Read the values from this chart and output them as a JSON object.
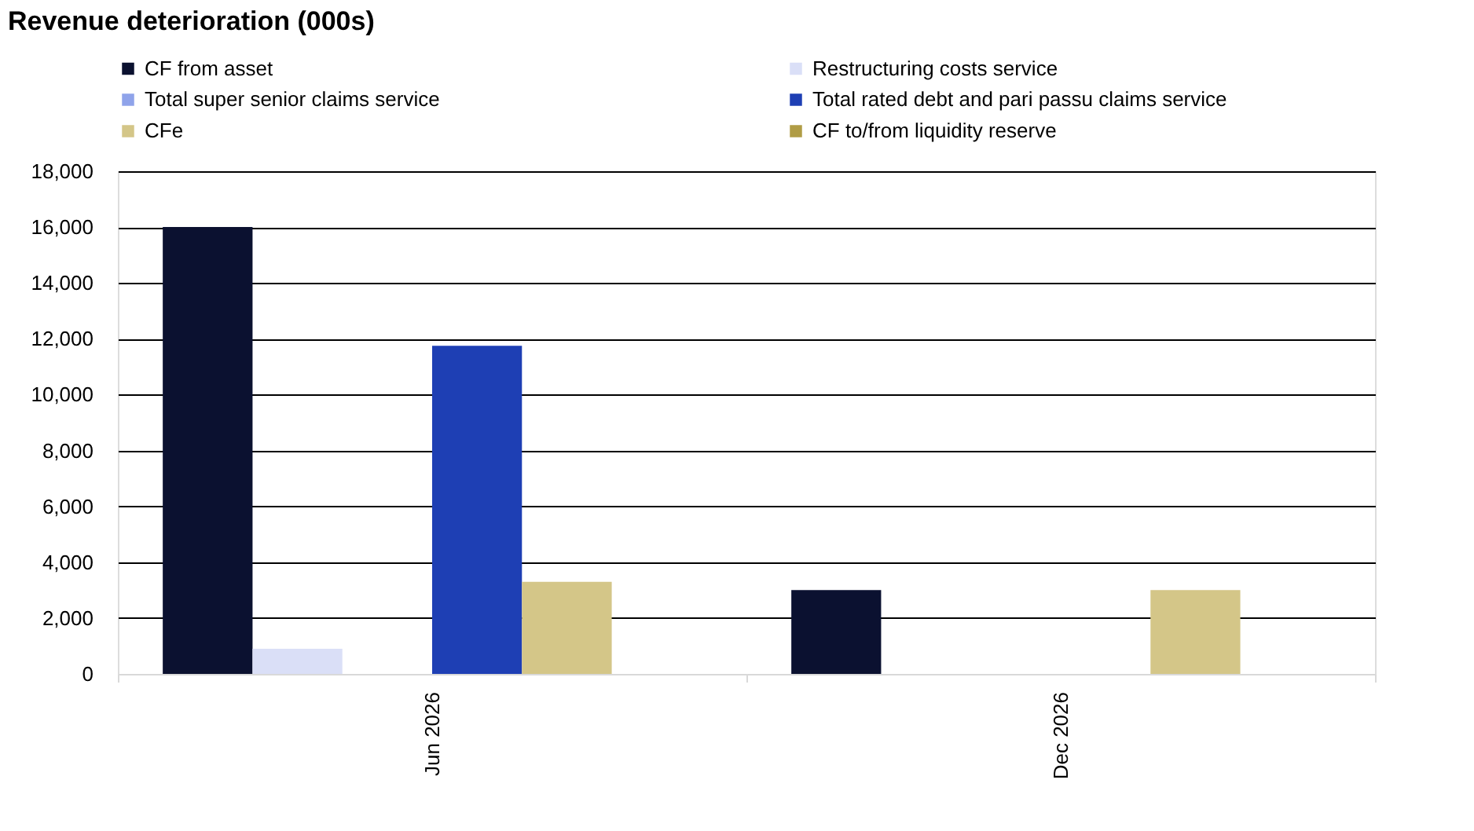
{
  "chart_data": {
    "type": "bar",
    "title": "Revenue deterioration (000s)",
    "categories": [
      "Jun 2026",
      "Dec 2026"
    ],
    "series": [
      {
        "name": "CF from asset",
        "color": "#0b1130",
        "values": [
          16000,
          3000
        ]
      },
      {
        "name": "Restructuring costs service",
        "color": "#dadff7",
        "values": [
          900,
          0
        ]
      },
      {
        "name": "Total super senior claims service",
        "color": "#8fa3ea",
        "values": [
          0,
          0
        ]
      },
      {
        "name": "Total rated debt and pari passu claims service",
        "color": "#1e3fb4",
        "values": [
          11750,
          0
        ]
      },
      {
        "name": "CFe",
        "color": "#d4c688",
        "values": [
          3300,
          3000
        ]
      },
      {
        "name": "CF to/from liquidity reserve",
        "color": "#b09c45",
        "values": [
          0,
          0
        ]
      }
    ],
    "ylim": [
      0,
      18000
    ],
    "yticks": [
      0,
      {
        "value": 2000,
        "label": "2,000"
      },
      {
        "value": 4000,
        "label": "4,000"
      },
      {
        "value": 6000,
        "label": "6,000"
      },
      {
        "value": 8000,
        "label": "8,000"
      },
      {
        "value": 10000,
        "label": "10,000"
      },
      {
        "value": 12000,
        "label": "12,000"
      },
      {
        "value": 14000,
        "label": "14,000"
      },
      {
        "value": 16000,
        "label": "16,000"
      },
      {
        "value": 18000,
        "label": "18,000"
      }
    ],
    "grid": "y",
    "legend": "top"
  }
}
